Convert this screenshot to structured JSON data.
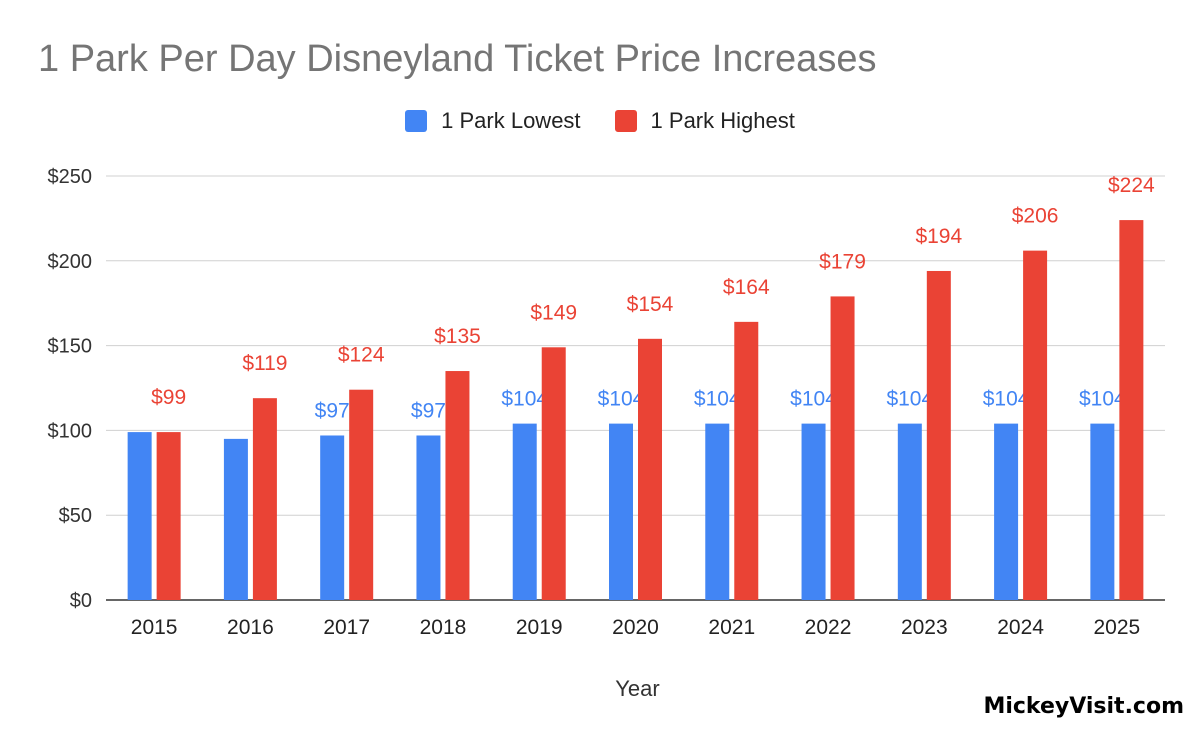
{
  "chart_data": {
    "type": "bar",
    "title": "1 Park Per Day Disneyland Ticket Price Increases",
    "xlabel": "Year",
    "ylabel": "",
    "categories": [
      "2015",
      "2016",
      "2017",
      "2018",
      "2019",
      "2020",
      "2021",
      "2022",
      "2023",
      "2024",
      "2025"
    ],
    "series": [
      {
        "name": "1 Park Lowest",
        "color": "#4285f4",
        "values": [
          99,
          95,
          97,
          97,
          104,
          104,
          104,
          104,
          104,
          104,
          104
        ],
        "data_labels": [
          "",
          "",
          "$97",
          "$97",
          "$104",
          "$104",
          "$104",
          "$104",
          "$104",
          "$104",
          "$104"
        ]
      },
      {
        "name": "1 Park Highest",
        "color": "#ea4335",
        "values": [
          99,
          119,
          124,
          135,
          149,
          154,
          164,
          179,
          194,
          206,
          224
        ],
        "data_labels": [
          "$99",
          "$119",
          "$124",
          "$135",
          "$149",
          "$154",
          "$164",
          "$179",
          "$194",
          "$206",
          "$224"
        ]
      }
    ],
    "ylim": [
      0,
      250
    ],
    "yticks": [
      0,
      50,
      100,
      150,
      200,
      250
    ],
    "ytick_labels": [
      "$0",
      "$50",
      "$100",
      "$150",
      "$200",
      "$250"
    ],
    "grid": true,
    "legend_position": "top-center"
  },
  "watermark": "MickeyVisit.com"
}
